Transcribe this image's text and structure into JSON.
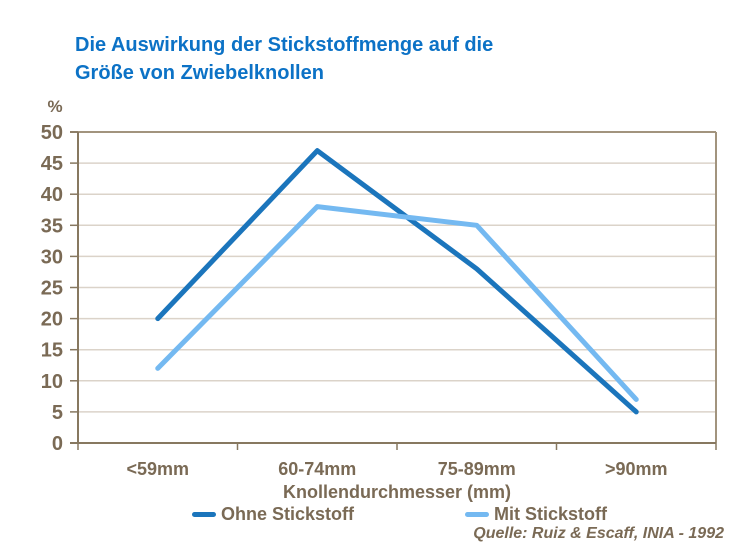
{
  "title": "Die Auswirkung der Stickstoffmenge auf die\nGröße von Zwiebelknollen",
  "source": "Quelle: Ruiz & Escaff, INIA - 1992",
  "colors": {
    "title_text": "#0C72C6",
    "chart_text": "#7A6A55",
    "axis_line": "#877860",
    "plot_border": "#A2947E",
    "gridline": "#DBD3C9",
    "background": "#FFFFFF"
  },
  "chart_data": {
    "type": "line",
    "title": "Die Auswirkung der Stickstoffmenge auf die Größe von Zwiebelknollen",
    "categories": [
      "<59mm",
      "60-74mm",
      "75-89mm",
      ">90mm"
    ],
    "series": [
      {
        "name": "Ohne Stickstoff",
        "values": [
          20,
          47,
          28,
          5
        ],
        "color": "#1B75BC"
      },
      {
        "name": "Mit Stickstoff",
        "values": [
          12,
          38,
          35,
          7
        ],
        "color": "#74B9F1"
      }
    ],
    "xlabel": "Knollendurchmesser (mm)",
    "ylabel": "%",
    "ylim": [
      0,
      50
    ],
    "ytick_step": 5,
    "grid": true,
    "legend_position": "bottom"
  }
}
